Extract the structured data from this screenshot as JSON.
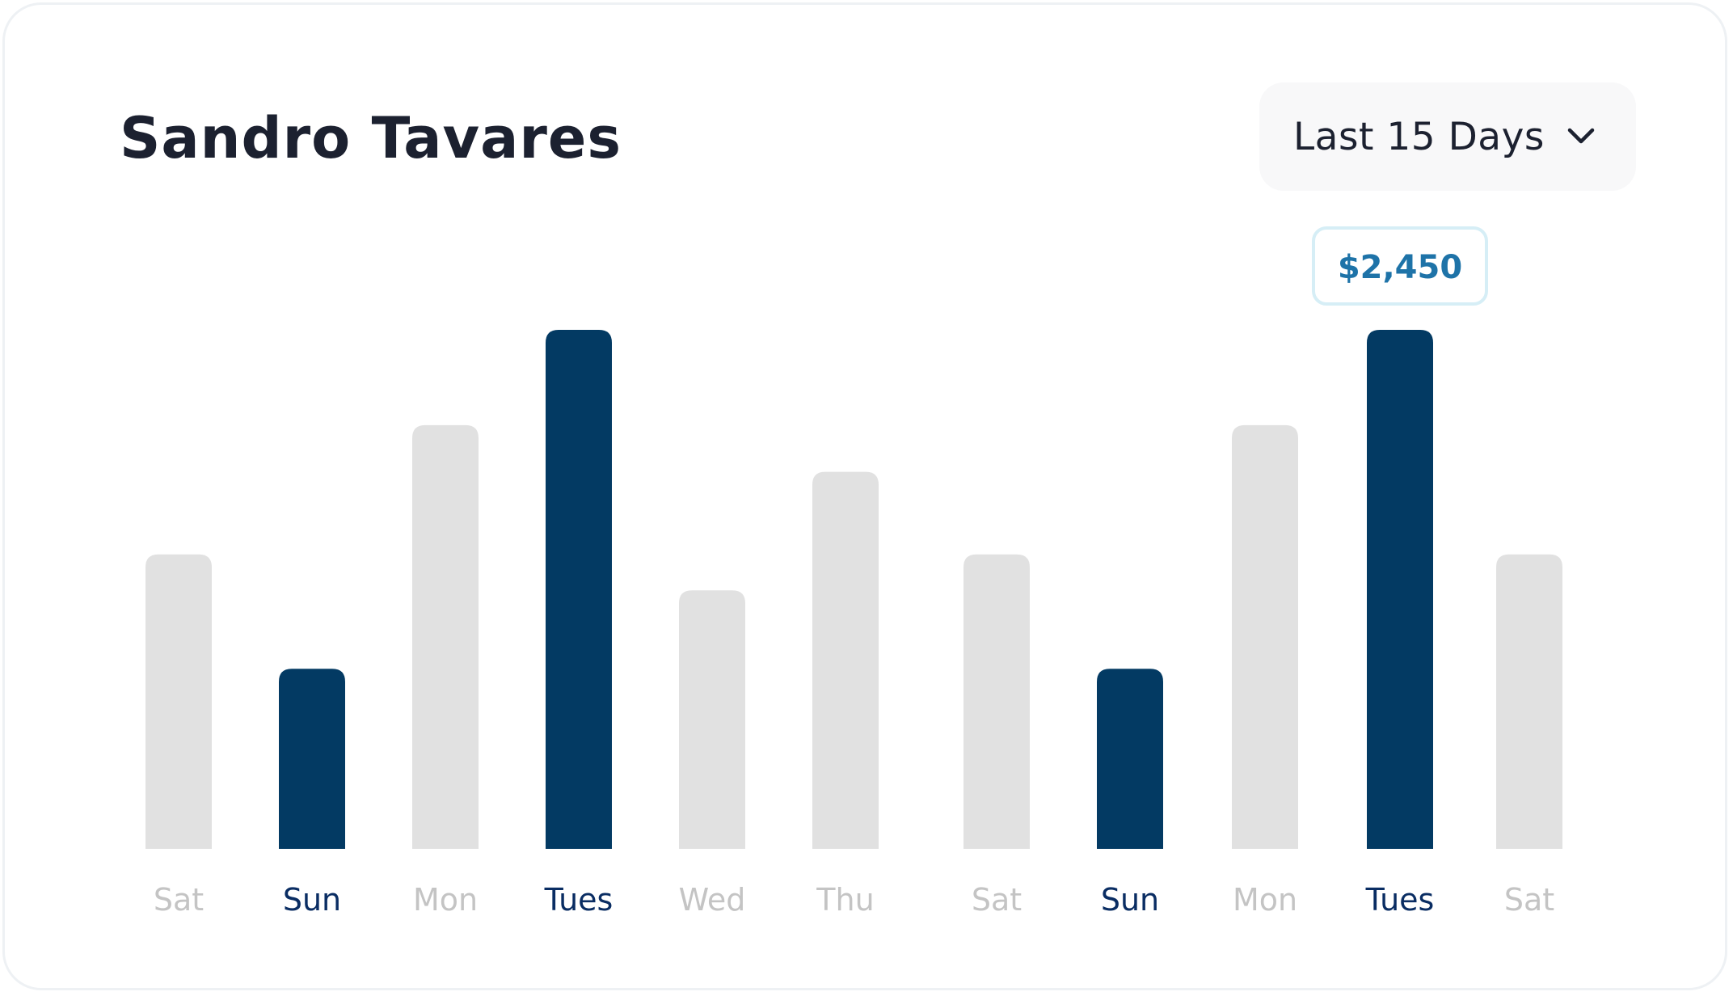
{
  "header": {
    "title": "Sandro Tavares",
    "range_label": "Last 15 Days",
    "range_icon": "chevron-down-icon"
  },
  "colors": {
    "highlight": "#033A63",
    "muted": "#E1E1E1",
    "label_muted": "#C4C4C4",
    "label_highlight": "#0A2D63",
    "tooltip_text": "#1E73A8",
    "tooltip_border": "#D6EEF6"
  },
  "chart_data": {
    "type": "bar",
    "categories": [
      "Sat",
      "Sun",
      "Mon",
      "Tues",
      "Wed",
      "Thu",
      "Sat",
      "Sun",
      "Mon",
      "Tues",
      "Sat"
    ],
    "values": [
      1390,
      850,
      2000,
      2450,
      1220,
      1780,
      1390,
      850,
      2000,
      2450,
      1390
    ],
    "highlighted": [
      false,
      true,
      false,
      true,
      false,
      false,
      false,
      true,
      false,
      true,
      false
    ],
    "ylim": [
      0,
      2450
    ],
    "grid": false,
    "annotation": {
      "text": "$2,450",
      "category_index": 9
    }
  }
}
